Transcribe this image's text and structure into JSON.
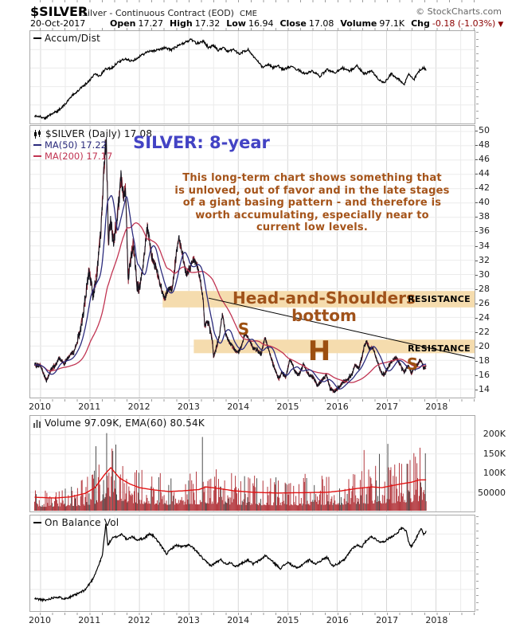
{
  "header": {
    "symbol": "$SILVER",
    "description": "Silver - Continuous Contract (EOD)",
    "exchange": "CME",
    "copyright": "© StockCharts.com",
    "date": "20-Oct-2017",
    "quote": [
      {
        "label": "Open",
        "value": "17.27"
      },
      {
        "label": "High",
        "value": "17.32"
      },
      {
        "label": "Low",
        "value": "16.94"
      },
      {
        "label": "Close",
        "value": "17.08"
      },
      {
        "label": "Volume",
        "value": "97.1K"
      },
      {
        "label": "Chg",
        "value": "-0.18 (-1.03%)"
      }
    ],
    "chg_direction": "▼"
  },
  "panels": {
    "accum": {
      "legend": "Accum/Dist"
    },
    "main": {
      "legend_symbol": "$SILVER (Daily) 17.08",
      "legend_ma50": "MA(50) 17.22",
      "legend_ma200": "MA(200) 17.17",
      "title": "SILVER: 8-year",
      "annotation_lines": [
        "This long-term chart shows something that",
        "is unloved, out of favor and in the late stages",
        "of a giant basing pattern - and therefore is",
        "worth accumulating, especially near to",
        "current low levels."
      ],
      "hs_line1": "Head-and-Shoulders",
      "hs_line2": "bottom",
      "resistance_label": "RESISTANCE",
      "left_shoulder": "S",
      "head": "H",
      "right_shoulder": "S"
    },
    "volume": {
      "legend": "Volume 97.09K, EMA(60) 80.54K"
    },
    "obv": {
      "legend": "On Balance Vol"
    }
  },
  "axis": {
    "years": [
      "2010",
      "2011",
      "2012",
      "2013",
      "2014",
      "2015",
      "2016",
      "2017",
      "2018"
    ],
    "price_ticks": [
      50,
      48,
      46,
      44,
      42,
      40,
      38,
      36,
      34,
      32,
      30,
      28,
      26,
      24,
      22,
      20,
      18,
      16,
      14
    ],
    "volume_ticks": [
      {
        "label": "200K",
        "value": 200
      },
      {
        "label": "150K",
        "value": 150
      },
      {
        "label": "100K",
        "value": 100
      },
      {
        "label": "50000",
        "value": 50
      }
    ]
  },
  "chart_data": [
    {
      "panel": "accum_dist",
      "type": "line",
      "x_unit": "year",
      "y_unit": "normalized_0_1",
      "points": [
        [
          2009.88,
          0.06
        ],
        [
          2010.0,
          0.05
        ],
        [
          2010.1,
          0.03
        ],
        [
          2010.2,
          0.08
        ],
        [
          2010.35,
          0.12
        ],
        [
          2010.5,
          0.2
        ],
        [
          2010.65,
          0.3
        ],
        [
          2010.8,
          0.38
        ],
        [
          2010.95,
          0.45
        ],
        [
          2011.1,
          0.55
        ],
        [
          2011.2,
          0.52
        ],
        [
          2011.3,
          0.6
        ],
        [
          2011.45,
          0.62
        ],
        [
          2011.55,
          0.68
        ],
        [
          2011.7,
          0.72
        ],
        [
          2011.85,
          0.7
        ],
        [
          2012.0,
          0.75
        ],
        [
          2012.15,
          0.8
        ],
        [
          2012.3,
          0.82
        ],
        [
          2012.5,
          0.85
        ],
        [
          2012.65,
          0.83
        ],
        [
          2012.8,
          0.88
        ],
        [
          2012.95,
          0.92
        ],
        [
          2013.05,
          0.95
        ],
        [
          2013.15,
          0.9
        ],
        [
          2013.3,
          0.93
        ],
        [
          2013.4,
          0.85
        ],
        [
          2013.5,
          0.88
        ],
        [
          2013.6,
          0.82
        ],
        [
          2013.7,
          0.86
        ],
        [
          2013.8,
          0.8
        ],
        [
          2013.9,
          0.84
        ],
        [
          2014.0,
          0.78
        ],
        [
          2014.2,
          0.83
        ],
        [
          2014.35,
          0.72
        ],
        [
          2014.5,
          0.62
        ],
        [
          2014.6,
          0.66
        ],
        [
          2014.7,
          0.62
        ],
        [
          2014.8,
          0.64
        ],
        [
          2014.9,
          0.6
        ],
        [
          2015.05,
          0.63
        ],
        [
          2015.2,
          0.6
        ],
        [
          2015.35,
          0.55
        ],
        [
          2015.5,
          0.58
        ],
        [
          2015.65,
          0.52
        ],
        [
          2015.8,
          0.6
        ],
        [
          2015.95,
          0.56
        ],
        [
          2016.1,
          0.62
        ],
        [
          2016.25,
          0.58
        ],
        [
          2016.4,
          0.64
        ],
        [
          2016.55,
          0.55
        ],
        [
          2016.7,
          0.58
        ],
        [
          2016.85,
          0.48
        ],
        [
          2016.95,
          0.44
        ],
        [
          2017.1,
          0.55
        ],
        [
          2017.25,
          0.48
        ],
        [
          2017.35,
          0.42
        ],
        [
          2017.45,
          0.55
        ],
        [
          2017.55,
          0.48
        ],
        [
          2017.65,
          0.58
        ],
        [
          2017.75,
          0.62
        ],
        [
          2017.8,
          0.6
        ]
      ]
    },
    {
      "panel": "price",
      "type": "line",
      "series_name": "$SILVER daily",
      "x_unit": "year",
      "y_unit": "USD",
      "ylim": [
        13,
        51
      ],
      "points": [
        [
          2009.88,
          17.4
        ],
        [
          2010.0,
          17.2
        ],
        [
          2010.12,
          15.2
        ],
        [
          2010.22,
          16.8
        ],
        [
          2010.3,
          17.3
        ],
        [
          2010.38,
          18.3
        ],
        [
          2010.48,
          17.6
        ],
        [
          2010.58,
          18.6
        ],
        [
          2010.68,
          19.3
        ],
        [
          2010.8,
          22.0
        ],
        [
          2010.9,
          26.0
        ],
        [
          2010.98,
          30.6
        ],
        [
          2011.06,
          27.0
        ],
        [
          2011.14,
          30.2
        ],
        [
          2011.22,
          36.0
        ],
        [
          2011.3,
          47.0
        ],
        [
          2011.33,
          49.3
        ],
        [
          2011.37,
          34.5
        ],
        [
          2011.42,
          37.5
        ],
        [
          2011.47,
          34.5
        ],
        [
          2011.52,
          36.0
        ],
        [
          2011.58,
          40.0
        ],
        [
          2011.63,
          43.8
        ],
        [
          2011.68,
          40.5
        ],
        [
          2011.72,
          42.5
        ],
        [
          2011.77,
          29.5
        ],
        [
          2011.82,
          32.0
        ],
        [
          2011.88,
          34.5
        ],
        [
          2011.95,
          28.5
        ],
        [
          2012.0,
          28.0
        ],
        [
          2012.07,
          31.0
        ],
        [
          2012.16,
          36.8
        ],
        [
          2012.25,
          32.5
        ],
        [
          2012.33,
          31.0
        ],
        [
          2012.42,
          28.5
        ],
        [
          2012.5,
          26.5
        ],
        [
          2012.58,
          27.8
        ],
        [
          2012.66,
          28.0
        ],
        [
          2012.75,
          33.0
        ],
        [
          2012.8,
          35.0
        ],
        [
          2012.88,
          32.5
        ],
        [
          2012.95,
          30.0
        ],
        [
          2013.03,
          31.0
        ],
        [
          2013.08,
          32.3
        ],
        [
          2013.18,
          31.0
        ],
        [
          2013.25,
          28.5
        ],
        [
          2013.29,
          26.5
        ],
        [
          2013.32,
          22.8
        ],
        [
          2013.4,
          23.3
        ],
        [
          2013.46,
          21.5
        ],
        [
          2013.5,
          18.5
        ],
        [
          2013.56,
          19.8
        ],
        [
          2013.62,
          21.5
        ],
        [
          2013.68,
          24.5
        ],
        [
          2013.74,
          21.8
        ],
        [
          2013.82,
          20.5
        ],
        [
          2013.9,
          19.8
        ],
        [
          2013.98,
          19.0
        ],
        [
          2014.06,
          19.8
        ],
        [
          2014.14,
          21.9
        ],
        [
          2014.22,
          20.8
        ],
        [
          2014.3,
          19.7
        ],
        [
          2014.38,
          19.5
        ],
        [
          2014.46,
          18.8
        ],
        [
          2014.54,
          21.2
        ],
        [
          2014.62,
          19.3
        ],
        [
          2014.72,
          17.2
        ],
        [
          2014.82,
          15.4
        ],
        [
          2014.88,
          16.4
        ],
        [
          2014.96,
          15.6
        ],
        [
          2015.05,
          18.2
        ],
        [
          2015.14,
          16.6
        ],
        [
          2015.22,
          15.9
        ],
        [
          2015.32,
          17.4
        ],
        [
          2015.42,
          16.1
        ],
        [
          2015.52,
          15.6
        ],
        [
          2015.6,
          14.5
        ],
        [
          2015.68,
          15.1
        ],
        [
          2015.78,
          16.0
        ],
        [
          2015.86,
          14.1
        ],
        [
          2015.94,
          13.7
        ],
        [
          2016.02,
          14.1
        ],
        [
          2016.12,
          15.0
        ],
        [
          2016.22,
          15.4
        ],
        [
          2016.3,
          16.0
        ],
        [
          2016.36,
          17.3
        ],
        [
          2016.44,
          16.9
        ],
        [
          2016.5,
          18.3
        ],
        [
          2016.55,
          20.0
        ],
        [
          2016.6,
          20.6
        ],
        [
          2016.66,
          19.5
        ],
        [
          2016.72,
          19.9
        ],
        [
          2016.78,
          18.5
        ],
        [
          2016.84,
          17.3
        ],
        [
          2016.9,
          16.2
        ],
        [
          2016.96,
          16.0
        ],
        [
          2017.04,
          17.2
        ],
        [
          2017.12,
          18.0
        ],
        [
          2017.2,
          18.4
        ],
        [
          2017.28,
          17.3
        ],
        [
          2017.36,
          16.4
        ],
        [
          2017.44,
          17.3
        ],
        [
          2017.5,
          16.2
        ],
        [
          2017.58,
          16.9
        ],
        [
          2017.66,
          17.9
        ],
        [
          2017.7,
          18.1
        ],
        [
          2017.75,
          16.9
        ],
        [
          2017.8,
          17.08
        ]
      ],
      "overlays": {
        "ma50_window_samples": 20,
        "ma200_window_samples": 80
      },
      "resistance_bands": [
        {
          "from_year": 2012.47,
          "price_low": 25.4,
          "price_high": 27.7
        },
        {
          "from_year": 2013.1,
          "price_low": 19.0,
          "price_high": 20.9
        }
      ],
      "trendline": {
        "x1": 2013.4,
        "y1": 26.7,
        "x2": 2018.78,
        "y2": 18.3
      }
    },
    {
      "panel": "volume",
      "type": "bar",
      "x_unit": "year",
      "y_unit": "thousands",
      "ema60_points": [
        [
          2009.88,
          35
        ],
        [
          2010.3,
          33
        ],
        [
          2010.6,
          36
        ],
        [
          2010.9,
          45
        ],
        [
          2011.1,
          60
        ],
        [
          2011.3,
          95
        ],
        [
          2011.42,
          112
        ],
        [
          2011.6,
          85
        ],
        [
          2011.8,
          70
        ],
        [
          2012.0,
          60
        ],
        [
          2012.3,
          54
        ],
        [
          2012.6,
          50
        ],
        [
          2012.9,
          52
        ],
        [
          2013.2,
          55
        ],
        [
          2013.35,
          62
        ],
        [
          2013.6,
          58
        ],
        [
          2013.9,
          52
        ],
        [
          2014.3,
          48
        ],
        [
          2014.8,
          46
        ],
        [
          2015.3,
          47
        ],
        [
          2015.8,
          48
        ],
        [
          2016.1,
          52
        ],
        [
          2016.4,
          58
        ],
        [
          2016.7,
          62
        ],
        [
          2016.9,
          60
        ],
        [
          2017.1,
          65
        ],
        [
          2017.3,
          70
        ],
        [
          2017.5,
          74
        ],
        [
          2017.65,
          80
        ],
        [
          2017.8,
          80.5
        ]
      ],
      "spikes": [
        [
          2011.12,
          168
        ],
        [
          2011.33,
          202
        ],
        [
          2013.28,
          192
        ],
        [
          2015.35,
          96
        ],
        [
          2016.55,
          158
        ],
        [
          2016.85,
          148
        ],
        [
          2017.02,
          174
        ],
        [
          2017.3,
          122
        ],
        [
          2017.55,
          150
        ],
        [
          2017.68,
          164
        ]
      ]
    },
    {
      "panel": "on_balance_volume",
      "type": "line",
      "x_unit": "year",
      "y_unit": "normalized_0_1",
      "points": [
        [
          2009.88,
          0.1
        ],
        [
          2010.1,
          0.08
        ],
        [
          2010.3,
          0.12
        ],
        [
          2010.5,
          0.1
        ],
        [
          2010.7,
          0.14
        ],
        [
          2010.9,
          0.2
        ],
        [
          2011.05,
          0.32
        ],
        [
          2011.15,
          0.45
        ],
        [
          2011.25,
          0.6
        ],
        [
          2011.32,
          0.97
        ],
        [
          2011.36,
          0.72
        ],
        [
          2011.45,
          0.8
        ],
        [
          2011.55,
          0.82
        ],
        [
          2011.65,
          0.85
        ],
        [
          2011.75,
          0.78
        ],
        [
          2011.85,
          0.82
        ],
        [
          2011.95,
          0.78
        ],
        [
          2012.1,
          0.8
        ],
        [
          2012.2,
          0.85
        ],
        [
          2012.3,
          0.82
        ],
        [
          2012.45,
          0.7
        ],
        [
          2012.55,
          0.62
        ],
        [
          2012.65,
          0.68
        ],
        [
          2012.75,
          0.72
        ],
        [
          2012.85,
          0.7
        ],
        [
          2013.0,
          0.72
        ],
        [
          2013.1,
          0.68
        ],
        [
          2013.2,
          0.62
        ],
        [
          2013.3,
          0.55
        ],
        [
          2013.45,
          0.48
        ],
        [
          2013.55,
          0.52
        ],
        [
          2013.65,
          0.55
        ],
        [
          2013.75,
          0.5
        ],
        [
          2013.85,
          0.52
        ],
        [
          2013.95,
          0.47
        ],
        [
          2014.1,
          0.52
        ],
        [
          2014.2,
          0.55
        ],
        [
          2014.3,
          0.5
        ],
        [
          2014.45,
          0.55
        ],
        [
          2014.55,
          0.6
        ],
        [
          2014.65,
          0.55
        ],
        [
          2014.75,
          0.5
        ],
        [
          2014.85,
          0.45
        ],
        [
          2015.0,
          0.52
        ],
        [
          2015.1,
          0.48
        ],
        [
          2015.2,
          0.45
        ],
        [
          2015.35,
          0.52
        ],
        [
          2015.45,
          0.55
        ],
        [
          2015.55,
          0.5
        ],
        [
          2015.7,
          0.55
        ],
        [
          2015.8,
          0.58
        ],
        [
          2015.9,
          0.48
        ],
        [
          2016.0,
          0.5
        ],
        [
          2016.15,
          0.55
        ],
        [
          2016.3,
          0.68
        ],
        [
          2016.4,
          0.72
        ],
        [
          2016.5,
          0.7
        ],
        [
          2016.6,
          0.78
        ],
        [
          2016.7,
          0.82
        ],
        [
          2016.8,
          0.78
        ],
        [
          2016.9,
          0.75
        ],
        [
          2017.0,
          0.78
        ],
        [
          2017.1,
          0.82
        ],
        [
          2017.2,
          0.85
        ],
        [
          2017.3,
          0.92
        ],
        [
          2017.4,
          0.88
        ],
        [
          2017.45,
          0.75
        ],
        [
          2017.5,
          0.7
        ],
        [
          2017.6,
          0.8
        ],
        [
          2017.7,
          0.92
        ],
        [
          2017.75,
          0.85
        ],
        [
          2017.8,
          0.88
        ]
      ]
    }
  ],
  "colors": {
    "grid_minor": "#ebebeb",
    "grid_year": "#d7d7d7",
    "band_tan": "#f5dcae",
    "price_dark": "#14141e",
    "price_red": "#8f2433",
    "ma50": "#2b2b7c",
    "ma200": "#c13452",
    "volume_bar": "#b43a40",
    "volume_bar_dark": "#4e4e4e",
    "volume_ema": "#e21212",
    "line_black": "#000000",
    "annotation_brown": "#a5541a",
    "hs_brown": "#9c4f10",
    "title_blue": "#4343c4",
    "chg_red": "#8b0000",
    "axis_text": "#222222",
    "copyright_gray": "#666666"
  }
}
